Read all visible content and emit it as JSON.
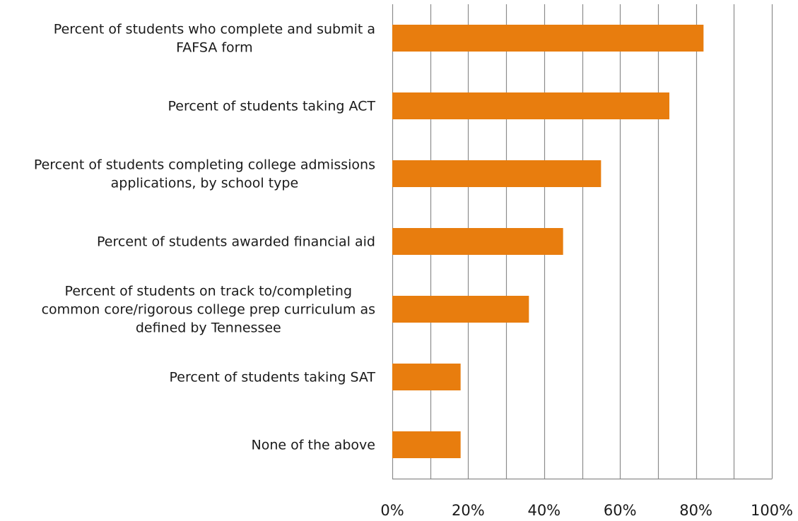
{
  "chart_data": {
    "type": "bar",
    "orientation": "horizontal",
    "title": "",
    "xlabel": "",
    "ylabel": "",
    "categories": [
      [
        "Percent of students who complete and submit a",
        "FAFSA form"
      ],
      [
        "Percent of students taking ACT"
      ],
      [
        "Percent of students completing college admissions",
        "applications, by school type"
      ],
      [
        "Percent of students awarded financial aid"
      ],
      [
        "Percent of students on track to/completing",
        "common core/rigorous college prep curriculum as",
        "defined by Tennessee"
      ],
      [
        "Percent of students taking SAT"
      ],
      [
        "None of the above"
      ]
    ],
    "values": [
      0.82,
      0.73,
      0.55,
      0.45,
      0.36,
      0.18,
      0.18
    ],
    "xlim": [
      0,
      1
    ],
    "x_ticks": [
      0,
      0.2,
      0.4,
      0.6,
      0.8,
      1.0
    ],
    "x_tick_labels": [
      "0%",
      "20%",
      "40%",
      "60%",
      "80%",
      "100%"
    ],
    "minor_gridline_step": 0.1,
    "grid": true,
    "legend": "none",
    "bar_color": "#E87D0E",
    "gridline_color": "#8c8c8c"
  }
}
